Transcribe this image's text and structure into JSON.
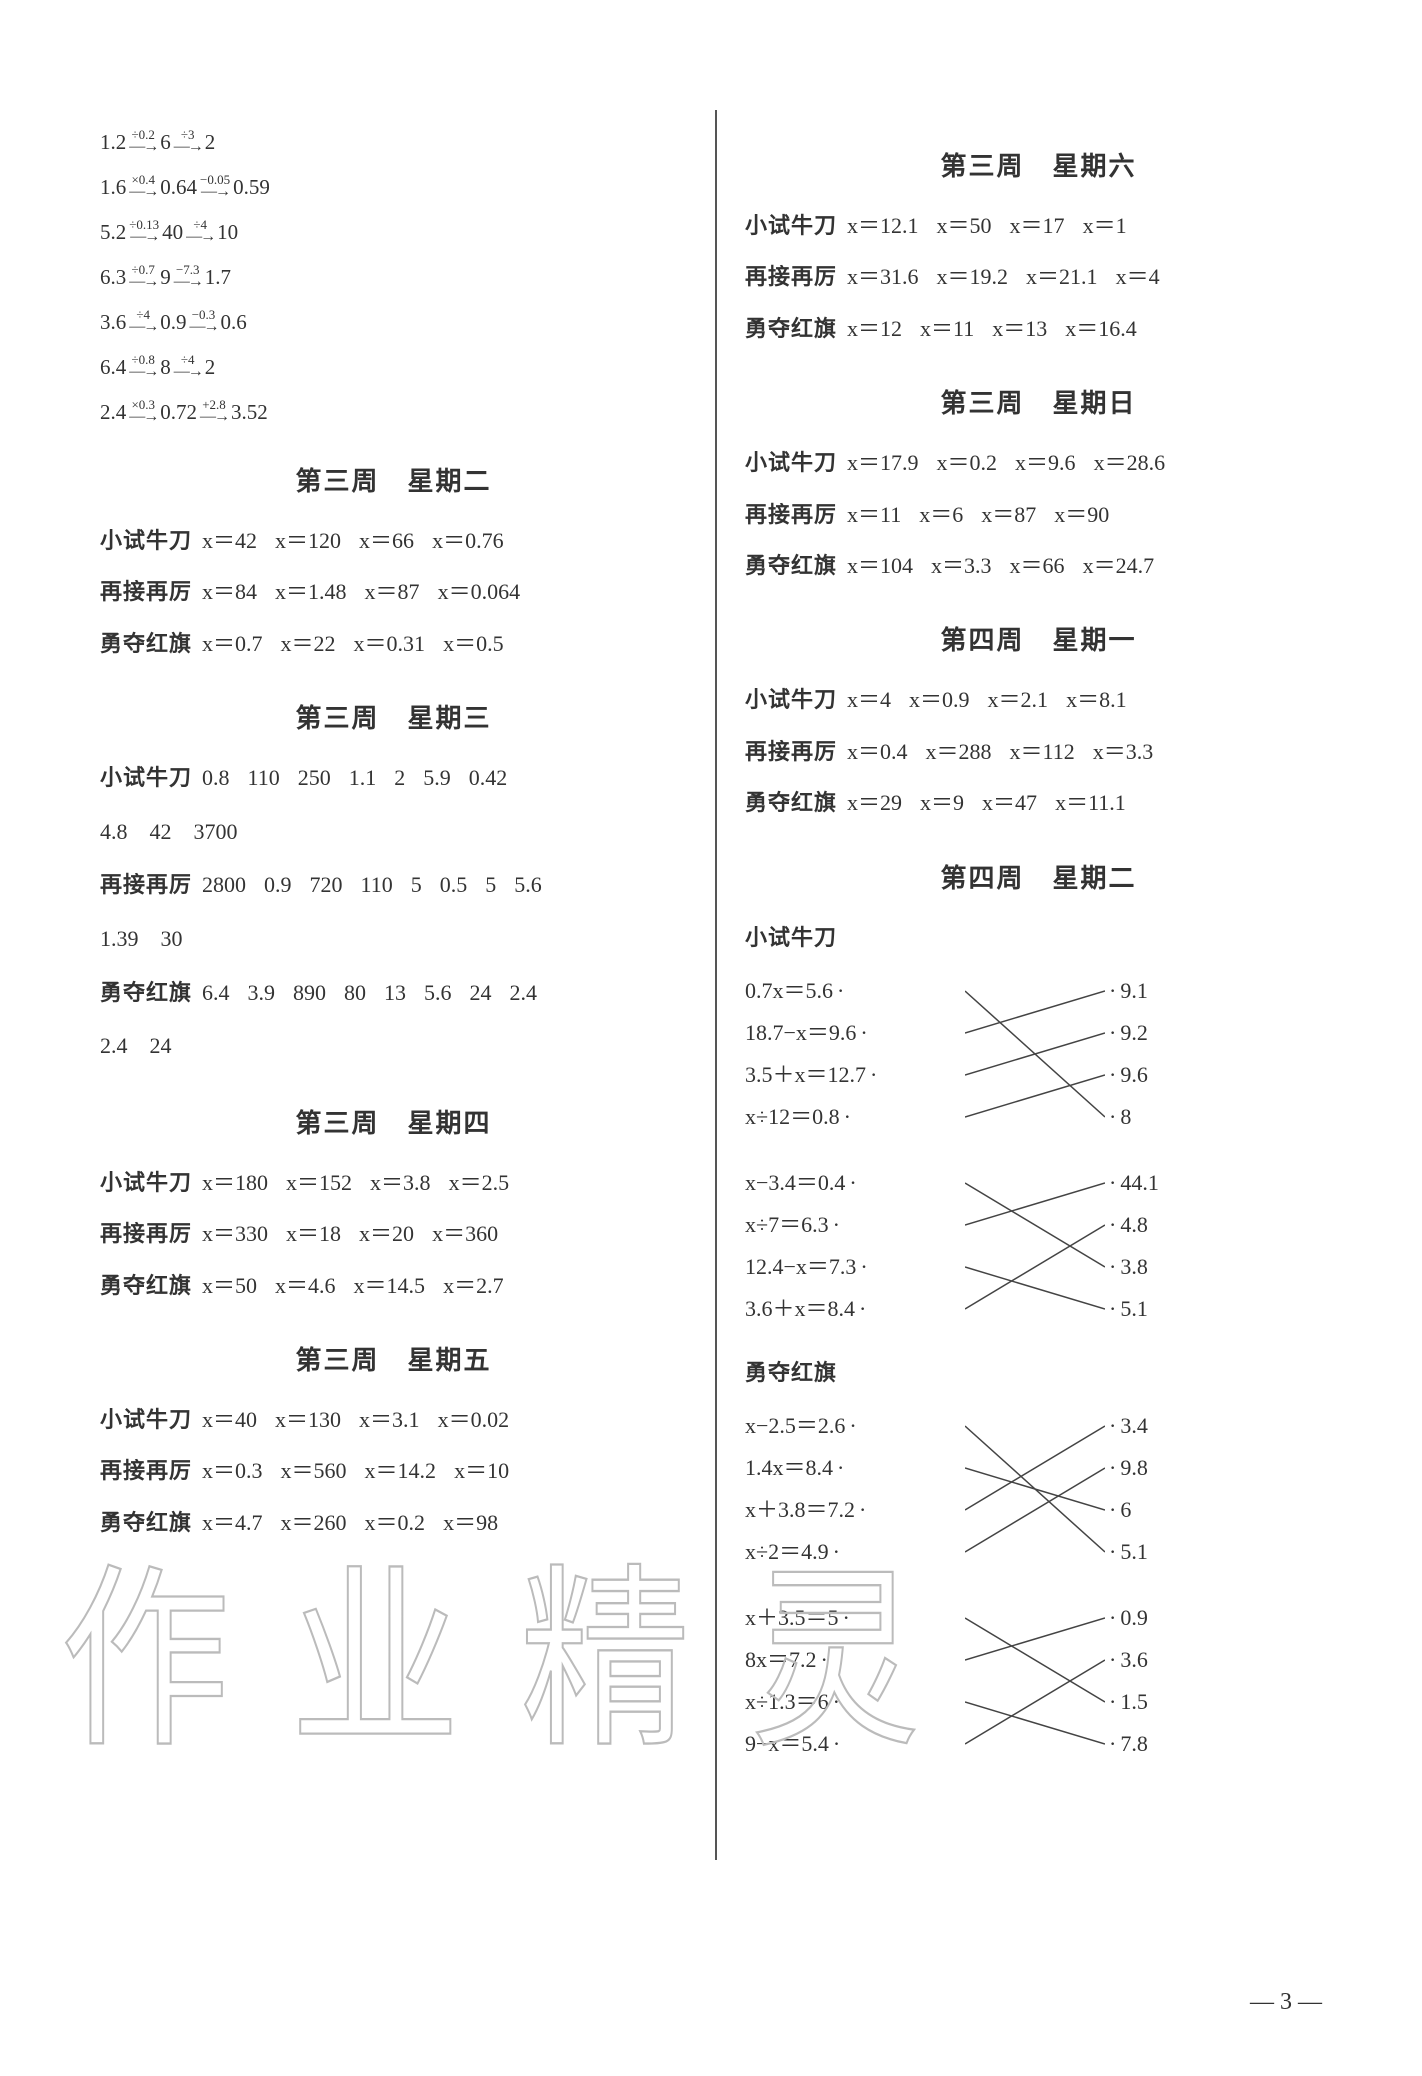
{
  "arrow_chains": [
    {
      "start": "1.2",
      "steps": [
        {
          "op": "÷0.2",
          "to": "6"
        },
        {
          "op": "÷3",
          "to": "2"
        }
      ]
    },
    {
      "start": "1.6",
      "steps": [
        {
          "op": "×0.4",
          "to": "0.64"
        },
        {
          "op": "−0.05",
          "to": "0.59"
        }
      ]
    },
    {
      "start": "5.2",
      "steps": [
        {
          "op": "÷0.13",
          "to": "40"
        },
        {
          "op": "÷4",
          "to": "10"
        }
      ]
    },
    {
      "start": "6.3",
      "steps": [
        {
          "op": "÷0.7",
          "to": "9"
        },
        {
          "op": "−7.3",
          "to": "1.7"
        }
      ]
    },
    {
      "start": "3.6",
      "steps": [
        {
          "op": "÷4",
          "to": "0.9"
        },
        {
          "op": "−0.3",
          "to": "0.6"
        }
      ]
    },
    {
      "start": "6.4",
      "steps": [
        {
          "op": "÷0.8",
          "to": "8"
        },
        {
          "op": "÷4",
          "to": "2"
        }
      ]
    },
    {
      "start": "2.4",
      "steps": [
        {
          "op": "×0.3",
          "to": "0.72"
        },
        {
          "op": "+2.8",
          "to": "3.52"
        }
      ]
    }
  ],
  "sections_left": [
    {
      "title": "第三周　星期二",
      "rows": [
        {
          "label": "小试牛刀",
          "items": [
            "x＝42",
            "x＝120",
            "x＝66",
            "x＝0.76"
          ]
        },
        {
          "label": "再接再厉",
          "items": [
            "x＝84",
            "x＝1.48",
            "x＝87",
            "x＝0.064"
          ]
        },
        {
          "label": "勇夺红旗",
          "items": [
            "x＝0.7",
            "x＝22",
            "x＝0.31",
            "x＝0.5"
          ]
        }
      ]
    },
    {
      "title": "第三周　星期三",
      "rows": [
        {
          "label": "小试牛刀",
          "items": [
            "0.8",
            "110",
            "250",
            "1.1",
            "2",
            "5.9",
            "0.42"
          ],
          "extra": "4.8　42　3700"
        },
        {
          "label": "再接再厉",
          "items": [
            "2800",
            "0.9",
            "720",
            "110",
            "5",
            "0.5",
            "5",
            "5.6"
          ],
          "extra": "1.39　30"
        },
        {
          "label": "勇夺红旗",
          "items": [
            "6.4",
            "3.9",
            "890",
            "80",
            "13",
            "5.6",
            "24",
            "2.4"
          ],
          "extra": "2.4　24"
        }
      ]
    },
    {
      "title": "第三周　星期四",
      "rows": [
        {
          "label": "小试牛刀",
          "items": [
            "x＝180",
            "x＝152",
            "x＝3.8",
            "x＝2.5"
          ]
        },
        {
          "label": "再接再厉",
          "items": [
            "x＝330",
            "x＝18",
            "x＝20",
            "x＝360"
          ]
        },
        {
          "label": "勇夺红旗",
          "items": [
            "x＝50",
            "x＝4.6",
            "x＝14.5",
            "x＝2.7"
          ]
        }
      ]
    },
    {
      "title": "第三周　星期五",
      "rows": [
        {
          "label": "小试牛刀",
          "items": [
            "x＝40",
            "x＝130",
            "x＝3.1",
            "x＝0.02"
          ]
        },
        {
          "label": "再接再厉",
          "items": [
            "x＝0.3",
            "x＝560",
            "x＝14.2",
            "x＝10"
          ]
        },
        {
          "label": "勇夺红旗",
          "items": [
            "x＝4.7",
            "x＝260",
            "x＝0.2",
            "x＝98"
          ]
        }
      ]
    }
  ],
  "sections_right": [
    {
      "title": "第三周　星期六",
      "rows": [
        {
          "label": "小试牛刀",
          "items": [
            "x＝12.1",
            "x＝50",
            "x＝17",
            "x＝1"
          ]
        },
        {
          "label": "再接再厉",
          "items": [
            "x＝31.6",
            "x＝19.2",
            "x＝21.1",
            "x＝4"
          ]
        },
        {
          "label": "勇夺红旗",
          "items": [
            "x＝12",
            "x＝11",
            "x＝13",
            "x＝16.4"
          ]
        }
      ]
    },
    {
      "title": "第三周　星期日",
      "rows": [
        {
          "label": "小试牛刀",
          "items": [
            "x＝17.9",
            "x＝0.2",
            "x＝9.6",
            "x＝28.6"
          ]
        },
        {
          "label": "再接再厉",
          "items": [
            "x＝11",
            "x＝6",
            "x＝87",
            "x＝90"
          ]
        },
        {
          "label": "勇夺红旗",
          "items": [
            "x＝104",
            "x＝3.3",
            "x＝66",
            "x＝24.7"
          ]
        }
      ]
    },
    {
      "title": "第四周　星期一",
      "rows": [
        {
          "label": "小试牛刀",
          "items": [
            "x＝4",
            "x＝0.9",
            "x＝2.1",
            "x＝8.1"
          ]
        },
        {
          "label": "再接再厉",
          "items": [
            "x＝0.4",
            "x＝288",
            "x＝112",
            "x＝3.3"
          ]
        },
        {
          "label": "勇夺红旗",
          "items": [
            "x＝29",
            "x＝9",
            "x＝47",
            "x＝11.1"
          ]
        }
      ]
    }
  ],
  "w4d2": {
    "title": "第四周　星期二",
    "label1": "小试牛刀",
    "group1": {
      "left": [
        "0.7x＝5.6",
        "18.7−x＝9.6",
        "3.5＋x＝12.7",
        "x÷12＝0.8"
      ],
      "right": [
        "9.1",
        "9.2",
        "9.6",
        "8"
      ],
      "edges": [
        [
          0,
          3
        ],
        [
          1,
          0
        ],
        [
          2,
          1
        ],
        [
          3,
          2
        ]
      ]
    },
    "group2": {
      "left": [
        "x−3.4＝0.4",
        "x÷7＝6.3",
        "12.4−x＝7.3",
        "3.6＋x＝8.4"
      ],
      "right": [
        "44.1",
        "4.8",
        "3.8",
        "5.1"
      ],
      "edges": [
        [
          0,
          2
        ],
        [
          1,
          0
        ],
        [
          2,
          3
        ],
        [
          3,
          1
        ]
      ]
    },
    "label2": "勇夺红旗",
    "group3": {
      "left": [
        "x−2.5＝2.6",
        "1.4x＝8.4",
        "x＋3.8＝7.2",
        "x÷2＝4.9"
      ],
      "right": [
        "3.4",
        "9.8",
        "6",
        "5.1"
      ],
      "edges": [
        [
          0,
          3
        ],
        [
          1,
          2
        ],
        [
          2,
          0
        ],
        [
          3,
          1
        ]
      ]
    },
    "group4": {
      "left": [
        "x＋3.5＝5",
        "8x＝7.2",
        "x÷1.3＝6",
        "9−x＝5.4"
      ],
      "right": [
        "0.9",
        "3.6",
        "1.5",
        "7.8"
      ],
      "edges": [
        [
          0,
          2
        ],
        [
          1,
          0
        ],
        [
          2,
          3
        ],
        [
          3,
          1
        ]
      ]
    }
  },
  "page_num": "— 3 —",
  "watermark": "作业精灵",
  "colors": {
    "text": "#333333",
    "line": "#444444"
  }
}
